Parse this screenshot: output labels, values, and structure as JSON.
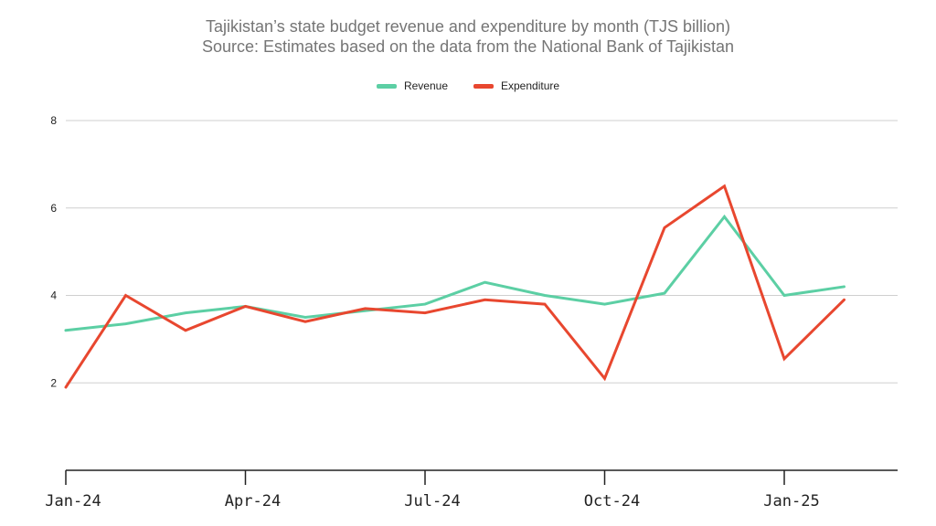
{
  "chart_data": {
    "type": "line",
    "title": "Tajikistan’s state budget revenue and expenditure by month (TJS billion)",
    "subtitle": "Source: Estimates based on the data from the National Bank of Tajikistan",
    "x": [
      "Jan-24",
      "Feb-24",
      "Mar-24",
      "Apr-24",
      "May-24",
      "Jun-24",
      "Jul-24",
      "Aug-24",
      "Sep-24",
      "Oct-24",
      "Nov-24",
      "Dec-24",
      "Jan-25",
      "Feb-25"
    ],
    "x_tick_labels": [
      "Jan-24",
      "Apr-24",
      "Jul-24",
      "Oct-24",
      "Jan-25"
    ],
    "y_tick_labels": [
      "2",
      "4",
      "6",
      "8"
    ],
    "ylim": [
      0,
      8
    ],
    "grid": true,
    "legend_position": "top-center",
    "series": [
      {
        "name": "Revenue",
        "color": "#5ccfa4",
        "values": [
          3.2,
          3.35,
          3.6,
          3.75,
          3.5,
          3.65,
          3.8,
          4.3,
          4.0,
          3.8,
          4.05,
          5.8,
          4.0,
          4.2
        ]
      },
      {
        "name": "Expenditure",
        "color": "#e8472f",
        "values": [
          1.9,
          4.0,
          3.2,
          3.75,
          3.4,
          3.7,
          3.6,
          3.9,
          3.8,
          2.1,
          5.55,
          6.5,
          2.55,
          3.9
        ]
      }
    ]
  }
}
